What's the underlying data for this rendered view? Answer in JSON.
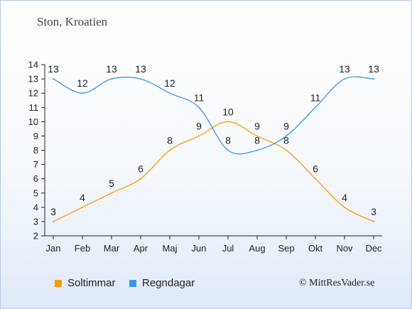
{
  "title": "Ston, Kroatien",
  "copyright": "© MittResVader.se",
  "chart_data": {
    "type": "line",
    "categories": [
      "Jan",
      "Feb",
      "Mar",
      "Apr",
      "Maj",
      "Jun",
      "Jul",
      "Aug",
      "Sep",
      "Okt",
      "Nov",
      "Dec"
    ],
    "ylim": [
      2,
      14
    ],
    "yticks": [
      2,
      3,
      4,
      5,
      6,
      7,
      8,
      9,
      10,
      11,
      12,
      13,
      14
    ],
    "grid": false,
    "legend_position": "bottom-left",
    "series": [
      {
        "name": "Soltimmar",
        "color": "#ff9900",
        "values": [
          3,
          4,
          5,
          6,
          8,
          9,
          10,
          9,
          8,
          6,
          4,
          3
        ]
      },
      {
        "name": "Regndagar",
        "color": "#3399ee",
        "values": [
          13,
          12,
          13,
          13,
          12,
          11,
          8,
          8,
          9,
          11,
          13,
          13
        ]
      }
    ]
  }
}
